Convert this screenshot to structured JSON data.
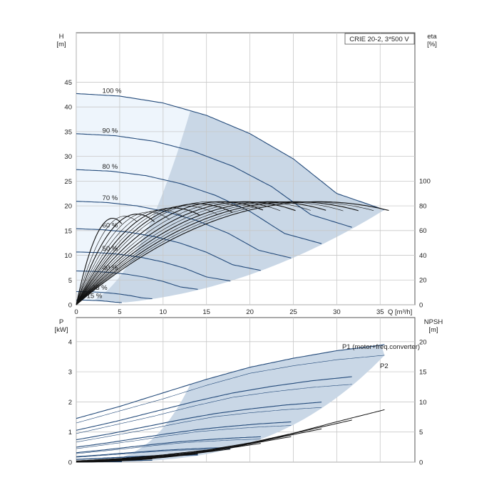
{
  "colors": {
    "envelope": "#c9d7e6",
    "envelope_light": "#eef5fc",
    "curve_blue": "#234a7a",
    "curve_black": "#111111",
    "grid": "#c8c8c8",
    "frame": "#555555"
  },
  "chart_data": [
    {
      "type": "line",
      "title": "CRIE 20-2, 3*500 V",
      "xlabel": "Q [m³/h]",
      "ylabel": "H",
      "ylabel_unit": "[m]",
      "y2label": "eta",
      "y2label_unit": "[%]",
      "xlim": [
        0,
        39
      ],
      "ylim": [
        0,
        55
      ],
      "y2lim": [
        0,
        100
      ],
      "xticks": [
        0,
        5,
        10,
        15,
        20,
        25,
        30,
        35
      ],
      "yticks": [
        0,
        5,
        10,
        15,
        20,
        25,
        30,
        35,
        40,
        45
      ],
      "y2ticks": [
        0,
        20,
        40,
        60,
        80,
        100
      ],
      "grid": true,
      "speed_curves": [
        {
          "label": "100 %",
          "speed": 1.0
        },
        {
          "label": "90 %",
          "speed": 0.9
        },
        {
          "label": "80 %",
          "speed": 0.8
        },
        {
          "label": "70 %",
          "speed": 0.7
        },
        {
          "label": "60 %",
          "speed": 0.6
        },
        {
          "label": "50 %",
          "speed": 0.5
        },
        {
          "label": "40 %",
          "speed": 0.4
        },
        {
          "label": "25 %",
          "speed": 0.25
        },
        {
          "label": "15 %",
          "speed": 0.15
        }
      ],
      "full_speed_head": {
        "q": [
          0,
          5,
          10,
          15,
          20,
          25,
          30,
          35.5
        ],
        "h": [
          42.7,
          42.2,
          40.8,
          38.3,
          34.6,
          29.5,
          22.5,
          19.2
        ]
      },
      "efficiency_peak_percent": 79,
      "efficiency_peak_q_full_speed": 26.5
    },
    {
      "type": "line",
      "ylabel": "P",
      "ylabel_unit": "[kW]",
      "y2label": "NPSH",
      "y2label_unit": "[m]",
      "xlim": [
        0,
        39
      ],
      "ylim": [
        0,
        4.8
      ],
      "y2lim": [
        0,
        24
      ],
      "yticks": [
        0,
        1,
        2,
        3,
        4
      ],
      "y2ticks": [
        0,
        5,
        10,
        15,
        20
      ],
      "grid": true,
      "series_labels": [
        "P1 (motor+freq.converter)",
        "P2"
      ],
      "p1_full_speed": {
        "q": [
          0,
          5,
          10,
          15,
          20,
          25,
          30,
          35.5
        ],
        "p": [
          1.45,
          1.85,
          2.3,
          2.75,
          3.15,
          3.45,
          3.7,
          3.9
        ]
      },
      "p2_full_speed": {
        "q": [
          0,
          5,
          10,
          15,
          20,
          25,
          30,
          35.5
        ],
        "p": [
          1.3,
          1.7,
          2.1,
          2.55,
          2.95,
          3.2,
          3.4,
          3.55
        ]
      },
      "npsh_full_speed": {
        "q": [
          0,
          5,
          10,
          15,
          20,
          25,
          30,
          35.5
        ],
        "npsh": [
          0.2,
          0.6,
          1.2,
          2.0,
          3.2,
          4.8,
          6.7,
          8.7
        ]
      }
    }
  ]
}
